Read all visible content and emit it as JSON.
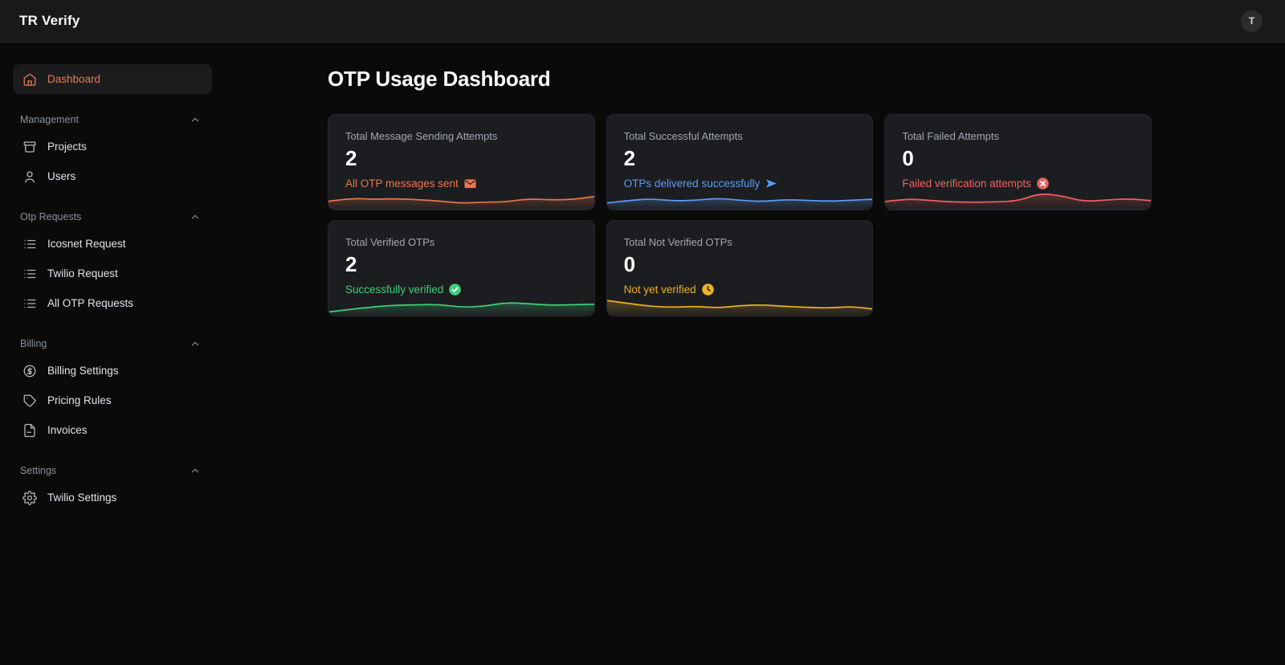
{
  "topbar": {
    "brand": "TR Verify",
    "avatar_initial": "T"
  },
  "sidebar": {
    "dashboard": {
      "label": "Dashboard",
      "icon": "home-icon",
      "active": true
    },
    "sections": [
      {
        "label": "Management",
        "items": [
          {
            "label": "Projects",
            "icon": "archive-icon"
          },
          {
            "label": "Users",
            "icon": "user-icon"
          }
        ]
      },
      {
        "label": "Otp Requests",
        "items": [
          {
            "label": "Icosnet Request",
            "icon": "list-icon"
          },
          {
            "label": "Twilio Request",
            "icon": "list-icon"
          },
          {
            "label": "All OTP Requests",
            "icon": "list-icon"
          }
        ]
      },
      {
        "label": "Billing",
        "items": [
          {
            "label": "Billing Settings",
            "icon": "dollar-circle-icon"
          },
          {
            "label": "Pricing Rules",
            "icon": "tag-icon"
          },
          {
            "label": "Invoices",
            "icon": "invoice-icon"
          }
        ]
      },
      {
        "label": "Settings",
        "items": [
          {
            "label": "Twilio Settings",
            "icon": "gear-icon"
          }
        ]
      }
    ]
  },
  "main": {
    "title": "OTP Usage Dashboard",
    "cards": [
      {
        "label": "Total Message Sending Attempts",
        "value": "2",
        "caption": "All OTP messages sent",
        "icon": "envelope-icon",
        "color": "#e8764a",
        "sparkline": [
          40,
          58,
          52,
          55,
          50,
          42,
          28,
          35,
          36,
          55,
          48,
          50,
          68
        ]
      },
      {
        "label": "Total Successful Attempts",
        "value": "2",
        "caption": "OTPs delivered successfully",
        "icon": "send-icon",
        "color": "#5b9df6",
        "sparkline": [
          30,
          45,
          55,
          42,
          46,
          58,
          46,
          38,
          50,
          46,
          40,
          46,
          52
        ]
      },
      {
        "label": "Total Failed Attempts",
        "value": "0",
        "caption": "Failed verification attempts",
        "icon": "circle-x-icon",
        "color": "#ee6262",
        "sparkline": [
          38,
          55,
          45,
          36,
          34,
          36,
          42,
          88,
          72,
          38,
          48,
          55,
          44
        ]
      },
      {
        "label": "Total Verified OTPs",
        "value": "2",
        "caption": "Successfully verified",
        "icon": "circle-check-icon",
        "color": "#3ecf7c",
        "sparkline": [
          12,
          28,
          42,
          52,
          55,
          57,
          40,
          45,
          68,
          62,
          52,
          55,
          58
        ]
      },
      {
        "label": "Total Not Verified OTPs",
        "value": "0",
        "caption": "Not yet verified",
        "icon": "clock-icon",
        "color": "#ecb124",
        "sparkline": [
          80,
          62,
          45,
          40,
          46,
          36,
          50,
          55,
          45,
          40,
          35,
          45,
          30
        ]
      }
    ]
  },
  "colors": {
    "accent_orange": "#e8784e",
    "page_bg": "#0a0a0b",
    "topbar_bg": "#19191b",
    "card_bg": "#1c1d20"
  }
}
